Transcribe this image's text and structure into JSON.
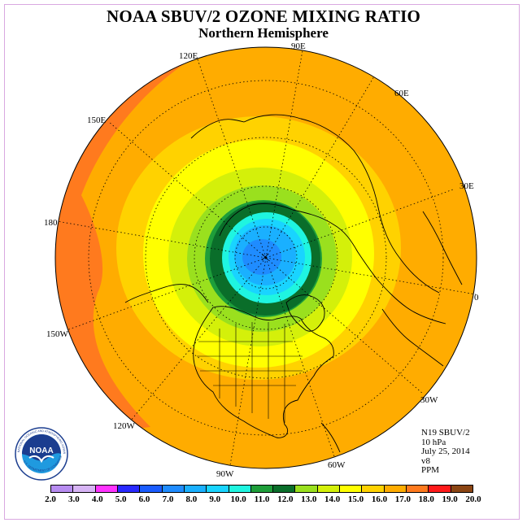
{
  "header": {
    "title": "NOAA SBUV/2 OZONE MIXING RATIO",
    "subtitle": "Northern Hemisphere"
  },
  "map": {
    "projection": "north polar stereographic",
    "longitude_labels": {
      "lon_120e": "120E",
      "lon_90e": "90E",
      "lon_60e": "60E",
      "lon_30e": "30E",
      "lon_0": "0",
      "lon_30w": "30W",
      "lon_60w": "60W",
      "lon_90w": "90W",
      "lon_120w": "120W",
      "lon_150w": "150W",
      "lon_180": "180",
      "lon_150e": "150E"
    },
    "contour_levels_ppm_center_to_edge": [
      5.0,
      7.0,
      8.0,
      9.0,
      10.0,
      12.0,
      13.0,
      14.0,
      15.0,
      16.0,
      17.0,
      18.0
    ]
  },
  "info": {
    "instrument": "N19 SBUV/2",
    "pressure_level": "10 hPa",
    "date": "July 25, 2014",
    "version": "v8",
    "units": "PPM"
  },
  "legend": {
    "tick_labels": [
      "2.0",
      "3.0",
      "4.0",
      "5.0",
      "6.0",
      "7.0",
      "8.0",
      "9.0",
      "10.0",
      "11.0",
      "12.0",
      "13.0",
      "14.0",
      "15.0",
      "16.0",
      "17.0",
      "18.0",
      "19.0",
      "20.0"
    ],
    "colors": [
      "#b78cf0",
      "#d7b4f5",
      "#ff33ff",
      "#2929ff",
      "#1a5cff",
      "#1f8cff",
      "#1ab0ff",
      "#19d4ff",
      "#1ff5e0",
      "#1e9e3a",
      "#0a6e2a",
      "#9ae01e",
      "#d4f00a",
      "#ffff00",
      "#ffd200",
      "#ffac00",
      "#ff7a1e",
      "#ff1a1a",
      "#8b4513"
    ]
  },
  "logo": {
    "text": "NOAA",
    "ring_text": "NATIONAL OCEANIC AND ATMOSPHERIC ADMINISTRATION",
    "ring_text_bottom": "U.S. DEPARTMENT OF COMMERCE",
    "colors": {
      "blue": "#1b3d8f",
      "sky": "#1f9adf",
      "white": "#ffffff"
    }
  }
}
